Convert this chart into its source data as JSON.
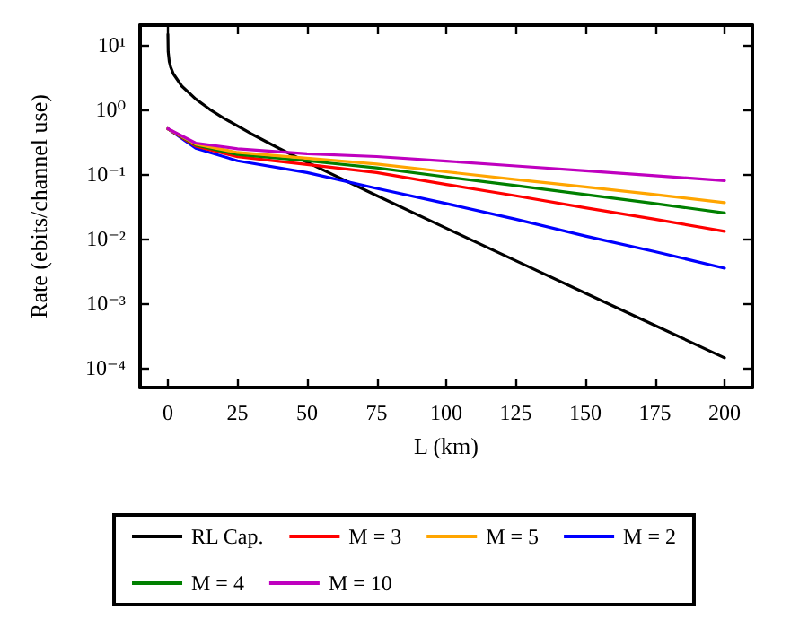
{
  "chart_data": {
    "type": "line",
    "xlabel": "L (km)",
    "ylabel": "Rate (ebits/channel use)",
    "log": "y",
    "grid": false,
    "legend": "bottom",
    "marker": "none",
    "line_style": "solid",
    "xlim": [
      -10,
      210
    ],
    "xticks": [
      0,
      25,
      50,
      75,
      100,
      125,
      150,
      175,
      200
    ],
    "ylim": [
      5e-05,
      20
    ],
    "yticks": [
      {
        "value": 0.0001,
        "label": "10⁻⁴"
      },
      {
        "value": 0.001,
        "label": "10⁻³"
      },
      {
        "value": 0.01,
        "label": "10⁻²"
      },
      {
        "value": 0.1,
        "label": "10⁻¹"
      },
      {
        "value": 1,
        "label": "10⁰"
      },
      {
        "value": 10,
        "label": "10¹"
      }
    ],
    "series": [
      {
        "name": "RL Cap.",
        "color": "#000000",
        "x": [
          0.001,
          0.1,
          0.5,
          1,
          2,
          5,
          10,
          15,
          20,
          30,
          40,
          50,
          75,
          100,
          125,
          150,
          175,
          200
        ],
        "values": [
          14.4,
          7.76,
          5.45,
          4.47,
          3.51,
          2.28,
          1.44,
          1.0,
          0.732,
          0.417,
          0.248,
          0.152,
          0.0463,
          0.0145,
          0.00456,
          0.00144,
          0.000456,
          0.000144
        ]
      },
      {
        "name": "M = 2",
        "color": "#0000ff",
        "x": [
          0,
          10,
          25,
          50,
          75,
          100,
          125,
          150,
          175,
          200
        ],
        "values": [
          0.5,
          0.25,
          0.16,
          0.105,
          0.06,
          0.035,
          0.02,
          0.011,
          0.0063,
          0.0035
        ]
      },
      {
        "name": "M = 3",
        "color": "#ff0000",
        "x": [
          0,
          10,
          25,
          50,
          75,
          100,
          125,
          150,
          175,
          200
        ],
        "values": [
          0.5,
          0.27,
          0.185,
          0.14,
          0.105,
          0.069,
          0.046,
          0.03,
          0.02,
          0.013
        ]
      },
      {
        "name": "M = 4",
        "color": "#008000",
        "x": [
          0,
          10,
          25,
          50,
          75,
          100,
          125,
          150,
          175,
          200
        ],
        "values": [
          0.5,
          0.28,
          0.2,
          0.16,
          0.124,
          0.09,
          0.066,
          0.048,
          0.035,
          0.025
        ]
      },
      {
        "name": "M = 5",
        "color": "#ffa500",
        "x": [
          0,
          10,
          25,
          50,
          75,
          100,
          125,
          150,
          175,
          200
        ],
        "values": [
          0.5,
          0.29,
          0.215,
          0.175,
          0.142,
          0.108,
          0.082,
          0.063,
          0.048,
          0.036
        ]
      },
      {
        "name": "M = 10",
        "color": "#bf00bf",
        "x": [
          0,
          10,
          25,
          50,
          75,
          100,
          125,
          150,
          175,
          200
        ],
        "values": [
          0.5,
          0.3,
          0.245,
          0.205,
          0.186,
          0.158,
          0.133,
          0.112,
          0.094,
          0.079
        ]
      }
    ]
  }
}
